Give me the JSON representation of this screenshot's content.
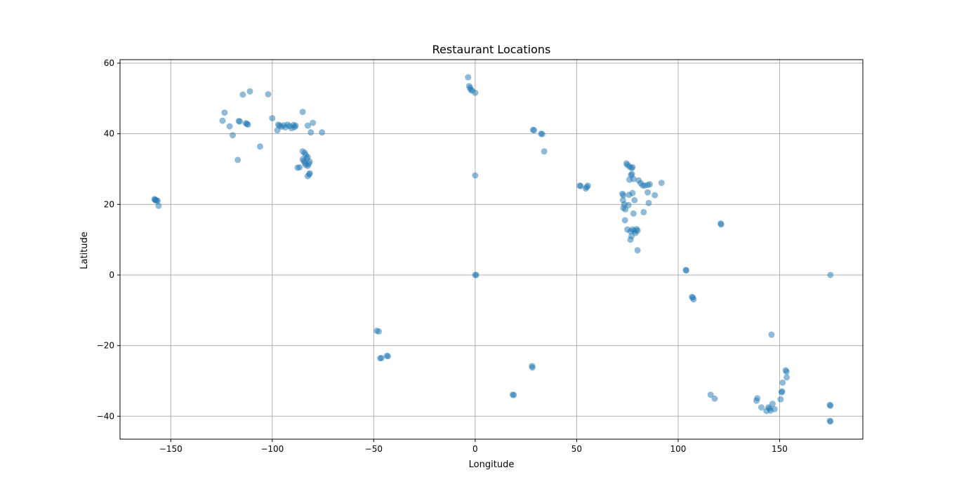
{
  "chart_data": {
    "type": "scatter",
    "title": "Restaurant Locations",
    "xlabel": "Longitude",
    "ylabel": "Latitude",
    "xlim": [
      -175.0,
      191.0
    ],
    "ylim": [
      -46.5,
      61.0
    ],
    "xticks": [
      -150,
      -100,
      -50,
      0,
      50,
      100,
      150
    ],
    "xtick_labels": [
      "−150",
      "−100",
      "−50",
      "0",
      "50",
      "100",
      "150"
    ],
    "yticks": [
      -40,
      -20,
      0,
      20,
      40,
      60
    ],
    "ytick_labels": [
      "−40",
      "−20",
      "0",
      "20",
      "40",
      "60"
    ],
    "grid": true,
    "legend": "none",
    "marker_color": "#1f77b4",
    "marker_alpha": 0.5,
    "points": [
      [
        -158.0,
        21.5
      ],
      [
        -157.8,
        21.3
      ],
      [
        -157.5,
        21.2
      ],
      [
        -157.0,
        21.1
      ],
      [
        -156.5,
        21.0
      ],
      [
        -156.0,
        19.6
      ],
      [
        -123.5,
        46.0
      ],
      [
        -124.5,
        43.7
      ],
      [
        -121.0,
        42.1
      ],
      [
        -119.5,
        39.6
      ],
      [
        -117.0,
        32.6
      ],
      [
        -116.5,
        43.6
      ],
      [
        -116.0,
        43.5
      ],
      [
        -114.5,
        51.1
      ],
      [
        -113.0,
        43.0
      ],
      [
        -112.5,
        42.8
      ],
      [
        -112.0,
        42.6
      ],
      [
        -111.0,
        52.0
      ],
      [
        -106.0,
        36.4
      ],
      [
        -102.0,
        51.2
      ],
      [
        -100.0,
        44.4
      ],
      [
        -97.5,
        41.0
      ],
      [
        -97.0,
        42.6
      ],
      [
        -96.5,
        42.3
      ],
      [
        -95.5,
        42.0
      ],
      [
        -94.5,
        42.4
      ],
      [
        -93.5,
        41.8
      ],
      [
        -92.5,
        42.6
      ],
      [
        -91.5,
        42.2
      ],
      [
        -90.5,
        41.6
      ],
      [
        -89.5,
        42.5
      ],
      [
        -89.0,
        41.9
      ],
      [
        -88.5,
        42.3
      ],
      [
        -85.0,
        46.2
      ],
      [
        -82.5,
        42.3
      ],
      [
        -81.0,
        40.4
      ],
      [
        -80.0,
        43.1
      ],
      [
        -75.5,
        40.4
      ],
      [
        -85.0,
        35.0
      ],
      [
        -84.0,
        34.6
      ],
      [
        -83.5,
        34.0
      ],
      [
        -82.5,
        33.4
      ],
      [
        -85.0,
        32.8
      ],
      [
        -84.5,
        32.3
      ],
      [
        -84.0,
        31.8
      ],
      [
        -83.5,
        31.2
      ],
      [
        -82.5,
        30.9
      ],
      [
        -81.5,
        32.1
      ],
      [
        -82.0,
        31.5
      ],
      [
        -83.0,
        33.0
      ],
      [
        -87.5,
        30.4
      ],
      [
        -86.5,
        30.5
      ],
      [
        -82.5,
        28.0
      ],
      [
        -81.8,
        28.5
      ],
      [
        -81.5,
        28.8
      ],
      [
        -3.5,
        56.0
      ],
      [
        -3.0,
        53.5
      ],
      [
        -2.5,
        53.0
      ],
      [
        -2.2,
        52.5
      ],
      [
        -1.5,
        52.2
      ],
      [
        0.0,
        51.6
      ],
      [
        0.0,
        28.2
      ],
      [
        0.0,
        0.0
      ],
      [
        0.5,
        0.0
      ],
      [
        28.5,
        41.1
      ],
      [
        29.0,
        41.0
      ],
      [
        32.5,
        40.0
      ],
      [
        33.0,
        39.9
      ],
      [
        34.0,
        35.0
      ],
      [
        -48.5,
        -15.8
      ],
      [
        -47.5,
        -16.0
      ],
      [
        -46.8,
        -23.6
      ],
      [
        -46.2,
        -23.5
      ],
      [
        -43.5,
        -22.9
      ],
      [
        -43.0,
        -23.0
      ],
      [
        18.5,
        -33.9
      ],
      [
        19.0,
        -34.0
      ],
      [
        28.0,
        -25.8
      ],
      [
        28.2,
        -26.2
      ],
      [
        51.5,
        25.3
      ],
      [
        52.0,
        25.2
      ],
      [
        54.5,
        24.5
      ],
      [
        55.0,
        24.9
      ],
      [
        55.5,
        25.3
      ],
      [
        74.5,
        31.6
      ],
      [
        75.0,
        31.2
      ],
      [
        76.0,
        30.7
      ],
      [
        77.0,
        30.3
      ],
      [
        77.5,
        30.5
      ],
      [
        77.2,
        28.6
      ],
      [
        76.8,
        28.3
      ],
      [
        78.0,
        27.2
      ],
      [
        76.0,
        27.0
      ],
      [
        80.5,
        26.8
      ],
      [
        81.5,
        26.0
      ],
      [
        82.5,
        25.4
      ],
      [
        83.5,
        25.3
      ],
      [
        85.0,
        25.5
      ],
      [
        86.0,
        25.7
      ],
      [
        88.5,
        22.6
      ],
      [
        85.5,
        20.4
      ],
      [
        85.0,
        23.4
      ],
      [
        91.8,
        26.1
      ],
      [
        72.5,
        23.0
      ],
      [
        73.0,
        22.6
      ],
      [
        72.8,
        21.2
      ],
      [
        73.5,
        20.0
      ],
      [
        73.0,
        19.0
      ],
      [
        74.0,
        18.6
      ],
      [
        75.5,
        19.8
      ],
      [
        73.8,
        15.5
      ],
      [
        75.0,
        12.9
      ],
      [
        76.5,
        12.4
      ],
      [
        77.5,
        12.9
      ],
      [
        78.5,
        12.5
      ],
      [
        79.5,
        13.0
      ],
      [
        80.0,
        12.6
      ],
      [
        79.0,
        11.9
      ],
      [
        77.0,
        11.0
      ],
      [
        76.5,
        10.0
      ],
      [
        78.0,
        17.4
      ],
      [
        78.5,
        21.2
      ],
      [
        83.0,
        17.8
      ],
      [
        80.0,
        7.0
      ],
      [
        75.8,
        22.7
      ],
      [
        77.5,
        23.2
      ],
      [
        103.8,
        1.4
      ],
      [
        104.0,
        1.3
      ],
      [
        106.8,
        -6.2
      ],
      [
        107.2,
        -6.4
      ],
      [
        107.6,
        -6.9
      ],
      [
        121.0,
        14.6
      ],
      [
        121.2,
        14.3
      ],
      [
        175.0,
        0.0
      ],
      [
        146.0,
        -16.9
      ],
      [
        153.0,
        -27.0
      ],
      [
        153.4,
        -27.4
      ],
      [
        153.5,
        -29.0
      ],
      [
        151.5,
        -30.5
      ],
      [
        151.2,
        -33.0
      ],
      [
        151.0,
        -33.2
      ],
      [
        150.5,
        -35.2
      ],
      [
        116.0,
        -33.9
      ],
      [
        118.0,
        -35.0
      ],
      [
        139.0,
        -34.9
      ],
      [
        138.6,
        -35.6
      ],
      [
        141.0,
        -37.5
      ],
      [
        143.5,
        -38.5
      ],
      [
        144.5,
        -37.5
      ],
      [
        145.0,
        -37.8
      ],
      [
        145.5,
        -38.4
      ],
      [
        146.5,
        -36.5
      ],
      [
        147.5,
        -38.0
      ],
      [
        174.8,
        -36.8
      ],
      [
        175.0,
        -37.0
      ],
      [
        174.8,
        -41.3
      ],
      [
        175.0,
        -41.5
      ]
    ]
  }
}
